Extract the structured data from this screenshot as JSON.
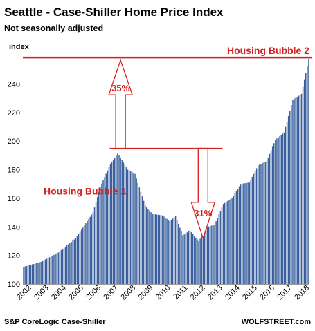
{
  "chart_data": {
    "type": "bar",
    "title": "Seattle - Case-Shiller Home Price Index",
    "subtitle": "Not seasonally adjusted",
    "ylabel": "index",
    "ylim": [
      100,
      260
    ],
    "yticks": [
      100,
      120,
      140,
      160,
      180,
      200,
      220,
      240
    ],
    "xticks": [
      "2002",
      "2003",
      "2004",
      "2005",
      "2006",
      "2007",
      "2008",
      "2009",
      "2010",
      "2011",
      "2012",
      "2013",
      "2014",
      "2015",
      "2016",
      "2017",
      "2018"
    ],
    "grid": false,
    "series": [
      {
        "start": "2002-01",
        "frequency": "monthly",
        "color": "#3a5f9e",
        "anchors": [
          [
            "2002-01",
            112
          ],
          [
            "2003-01",
            115.5
          ],
          [
            "2004-01",
            122
          ],
          [
            "2005-01",
            132
          ],
          [
            "2006-01",
            150
          ],
          [
            "2006-06",
            168
          ],
          [
            "2007-01",
            184
          ],
          [
            "2007-06",
            191.5
          ],
          [
            "2008-01",
            180
          ],
          [
            "2008-06",
            177
          ],
          [
            "2009-01",
            155
          ],
          [
            "2009-06",
            149
          ],
          [
            "2010-01",
            148
          ],
          [
            "2010-06",
            144
          ],
          [
            "2010-10",
            147.5
          ],
          [
            "2011-03",
            134
          ],
          [
            "2011-08",
            137.5
          ],
          [
            "2012-02",
            130
          ],
          [
            "2012-08",
            140
          ],
          [
            "2013-01",
            141.5
          ],
          [
            "2013-07",
            156
          ],
          [
            "2014-01",
            160
          ],
          [
            "2014-07",
            170
          ],
          [
            "2015-01",
            171
          ],
          [
            "2015-07",
            183
          ],
          [
            "2016-01",
            186
          ],
          [
            "2016-07",
            201
          ],
          [
            "2017-01",
            206
          ],
          [
            "2017-07",
            229
          ],
          [
            "2018-01",
            233
          ],
          [
            "2018-06",
            257.5
          ]
        ]
      }
    ],
    "reference_lines": [
      {
        "value": 258.5,
        "label": "Housing Bubble 2",
        "color": "#d62020"
      },
      {
        "value": 195,
        "color": "#d62020"
      }
    ],
    "annotations": [
      {
        "text": "Housing Bubble 1",
        "color": "#d62020"
      },
      {
        "text": "35%",
        "direction": "up",
        "from": 195,
        "to": 258,
        "date": "2007-08",
        "color": "#d62020"
      },
      {
        "text": "31%",
        "direction": "down",
        "from": 195,
        "to": 132,
        "date": "2012-05",
        "color": "#d62020"
      }
    ],
    "source": "S&P CoreLogic Case-Shiller",
    "credit": "WOLFSTREET.com"
  }
}
